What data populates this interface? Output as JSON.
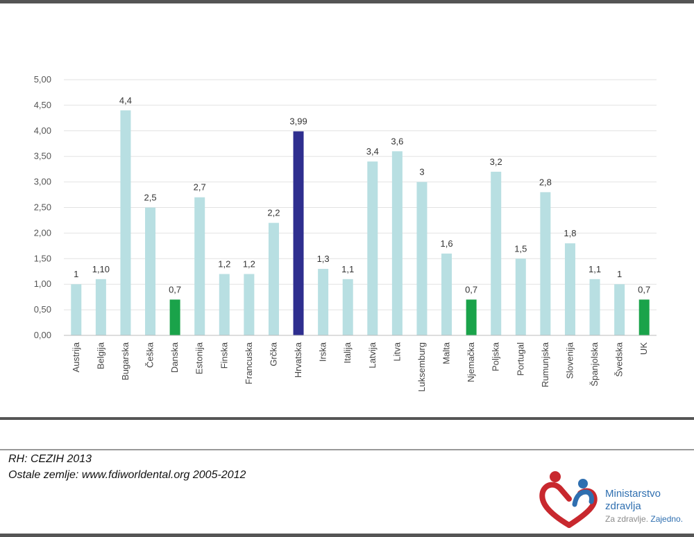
{
  "chart_data": {
    "type": "bar",
    "categories": [
      "Austrija",
      "Belgija",
      "Bugarska",
      "Češka",
      "Danska",
      "Estonija",
      "Finska",
      "Francuska",
      "Grčka",
      "Hrvatska",
      "Irska",
      "Italija",
      "Latvija",
      "Litva",
      "Luksemburg",
      "Malta",
      "Njemačka",
      "Poljska",
      "Portugal",
      "Rumunjska",
      "Slovenija",
      "Španjolska",
      "Švedska",
      "UK"
    ],
    "values": [
      1,
      1.1,
      4.4,
      2.5,
      0.7,
      2.7,
      1.2,
      1.2,
      2.2,
      3.99,
      1.3,
      1.1,
      3.4,
      3.6,
      3,
      1.6,
      0.7,
      3.2,
      1.5,
      2.8,
      1.8,
      1.1,
      1,
      0.7
    ],
    "data_labels": [
      "1",
      "1,10",
      "4,4",
      "2,5",
      "0,7",
      "2,7",
      "1,2",
      "1,2",
      "2,2",
      "3,99",
      "1,3",
      "1,1",
      "3,4",
      "3,6",
      "3",
      "1,6",
      "0,7",
      "3,2",
      "1,5",
      "2,8",
      "1,8",
      "1,1",
      "1",
      "0,7"
    ],
    "bar_colors": [
      "#b8dfe2",
      "#b8dfe2",
      "#b8dfe2",
      "#b8dfe2",
      "#1aa34a",
      "#b8dfe2",
      "#b8dfe2",
      "#b8dfe2",
      "#b8dfe2",
      "#2e2e8f",
      "#b8dfe2",
      "#b8dfe2",
      "#b8dfe2",
      "#b8dfe2",
      "#b8dfe2",
      "#b8dfe2",
      "#1aa34a",
      "#b8dfe2",
      "#b8dfe2",
      "#b8dfe2",
      "#b8dfe2",
      "#b8dfe2",
      "#b8dfe2",
      "#1aa34a"
    ],
    "yticks": [
      "0,00",
      "0,50",
      "1,00",
      "1,50",
      "2,00",
      "2,50",
      "3,00",
      "3,50",
      "4,00",
      "4,50",
      "5,00"
    ],
    "ylim": [
      0,
      5
    ],
    "title": "",
    "xlabel": "",
    "ylabel": "",
    "grid": true,
    "legend": "none"
  },
  "source": {
    "line1": "RH: CEZIH 2013",
    "line2": "Ostale zemlje: www.fdiworldental.org 2005-2012"
  },
  "logo": {
    "line1": "Ministarstvo",
    "line2": "zdravlja",
    "tagline_part1": "Za zdravlje. ",
    "tagline_part2": "Zajedno."
  },
  "colors": {
    "default_bar": "#b8dfe2",
    "highlight_bar": "#2e2e8f",
    "green_bar": "#1aa34a",
    "frame": "#555555"
  }
}
